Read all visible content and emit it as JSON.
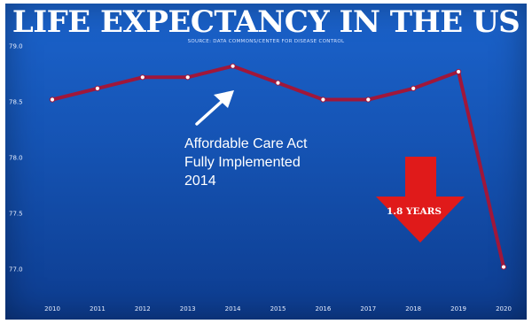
{
  "chart_data": {
    "type": "line",
    "title": "LIFE EXPECTANCY IN THE US",
    "subtitle": "SOURCE: DATA COMMONS/CENTER FOR DISEASE CONTROL",
    "x": [
      "2010",
      "2011",
      "2012",
      "2013",
      "2014",
      "2015",
      "2016",
      "2017",
      "2018",
      "2019",
      "2020"
    ],
    "series": [
      {
        "values": [
          78.52,
          78.62,
          78.72,
          78.72,
          78.82,
          78.67,
          78.52,
          78.52,
          78.62,
          78.77,
          77.02
        ]
      }
    ],
    "y_ticks": [
      "79.0",
      "78.5",
      "78.0",
      "77.5",
      "77.0"
    ],
    "ylim": [
      76.85,
      79.0
    ],
    "grid": false,
    "colors": {
      "line": "#a0173a",
      "marker": "#ffffff",
      "arrow": "#e01a1a"
    },
    "annotations": {
      "aca_line1": "Affordable Care Act",
      "aca_line2": "Fully Implemented",
      "aca_line3": "2014",
      "drop": "1.8 YEARS"
    }
  }
}
